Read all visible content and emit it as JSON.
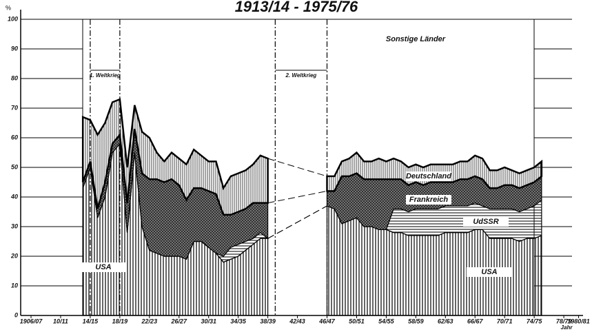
{
  "chart_data": {
    "type": "area",
    "title": "1913/14 - 1975/76",
    "x_label": "Jahr",
    "y_label": "%",
    "stacked": true,
    "others_label": "Sonstige Länder",
    "x": [
      1913,
      1914,
      1915,
      1916,
      1917,
      1918,
      1919,
      1920,
      1921,
      1922,
      1923,
      1924,
      1925,
      1926,
      1927,
      1928,
      1929,
      1930,
      1931,
      1932,
      1933,
      1934,
      1935,
      1936,
      1937,
      1938,
      1942,
      1946,
      1947,
      1948,
      1949,
      1950,
      1951,
      1952,
      1953,
      1954,
      1955,
      1956,
      1957,
      1958,
      1959,
      1960,
      1961,
      1962,
      1963,
      1964,
      1965,
      1966,
      1967,
      1968,
      1969,
      1970,
      1971,
      1972,
      1973,
      1974,
      1975
    ],
    "series": [
      {
        "name": "USA",
        "color": "#000000",
        "values": [
          43,
          50,
          33,
          40,
          55,
          58,
          28,
          55,
          30,
          22,
          21,
          20,
          20,
          20,
          19,
          25,
          25,
          23,
          21,
          18,
          19,
          20,
          22,
          24,
          26,
          26,
          null,
          37,
          36,
          31,
          32,
          33,
          30,
          30,
          29,
          29,
          28,
          28,
          27,
          27,
          27,
          27,
          27,
          28,
          28,
          28,
          28,
          29,
          29,
          26,
          26,
          26,
          26,
          25,
          26,
          26,
          27
        ]
      },
      {
        "name": "UdSSR",
        "color": "#000000",
        "values": [
          0,
          0,
          0,
          0,
          0,
          0,
          0,
          0,
          0,
          0,
          0,
          0,
          0,
          0,
          0,
          0,
          0,
          0,
          0,
          2,
          4,
          4,
          3,
          2,
          2,
          0,
          null,
          0,
          0,
          0,
          0,
          0,
          0,
          0,
          0,
          0,
          8,
          8,
          8,
          9,
          9,
          9,
          9,
          9,
          9,
          9,
          9,
          9,
          8,
          10,
          10,
          10,
          10,
          10,
          10,
          11,
          12
        ]
      },
      {
        "name": "Frankreich",
        "color": "#000000",
        "values": [
          2,
          2,
          3,
          5,
          3,
          3,
          10,
          8,
          18,
          24,
          25,
          25,
          26,
          24,
          20,
          18,
          18,
          19,
          20,
          14,
          11,
          11,
          11,
          12,
          10,
          12,
          null,
          5,
          6,
          16,
          15,
          15,
          16,
          16,
          17,
          17,
          10,
          10,
          9,
          9,
          8,
          9,
          9,
          8,
          8,
          9,
          9,
          9,
          9,
          7,
          7,
          8,
          8,
          8,
          8,
          8,
          8
        ]
      },
      {
        "name": "Deutschland",
        "color": "#000000",
        "values": [
          22,
          14,
          25,
          20,
          14,
          12,
          12,
          8,
          14,
          14,
          9,
          7,
          9,
          9,
          12,
          13,
          11,
          10,
          11,
          9,
          13,
          13,
          13,
          13,
          16,
          15,
          null,
          5,
          5,
          5,
          6,
          7,
          6,
          6,
          7,
          6,
          7,
          6,
          6,
          6,
          6,
          6,
          6,
          6,
          6,
          6,
          6,
          7,
          7,
          6,
          6,
          6,
          5,
          5,
          5,
          5,
          5
        ]
      }
    ],
    "annotations": [
      {
        "text": "1. Weltkrieg",
        "x": [
          1914,
          1918
        ]
      },
      {
        "text": "2. Weltkrieg",
        "x": [
          1939,
          1946
        ]
      }
    ],
    "xlim": [
      1904.6,
      1980.6
    ],
    "xticks": [
      {
        "value": 1906,
        "label": "1906/07"
      },
      {
        "value": 1910,
        "label": "10/11"
      },
      {
        "value": 1914,
        "label": "14/15"
      },
      {
        "value": 1918,
        "label": "18/19"
      },
      {
        "value": 1922,
        "label": "22/23"
      },
      {
        "value": 1926,
        "label": "26/27"
      },
      {
        "value": 1930,
        "label": "30/31"
      },
      {
        "value": 1934,
        "label": "34/35"
      },
      {
        "value": 1938,
        "label": "38/39"
      },
      {
        "value": 1942,
        "label": "42/43"
      },
      {
        "value": 1946,
        "label": "46/47"
      },
      {
        "value": 1950,
        "label": "50/51"
      },
      {
        "value": 1954,
        "label": "54/55"
      },
      {
        "value": 1958,
        "label": "58/59"
      },
      {
        "value": 1962,
        "label": "62/63"
      },
      {
        "value": 1966,
        "label": "66/67"
      },
      {
        "value": 1970,
        "label": "70/71"
      },
      {
        "value": 1974,
        "label": "74/75"
      },
      {
        "value": 1978,
        "label": "78/79"
      },
      {
        "value": 1980,
        "label": "1980/81"
      }
    ],
    "ylim": [
      0,
      100
    ],
    "yticks": [
      0,
      10,
      20,
      30,
      40,
      50,
      60,
      70,
      80,
      90,
      100
    ],
    "grid": true
  }
}
